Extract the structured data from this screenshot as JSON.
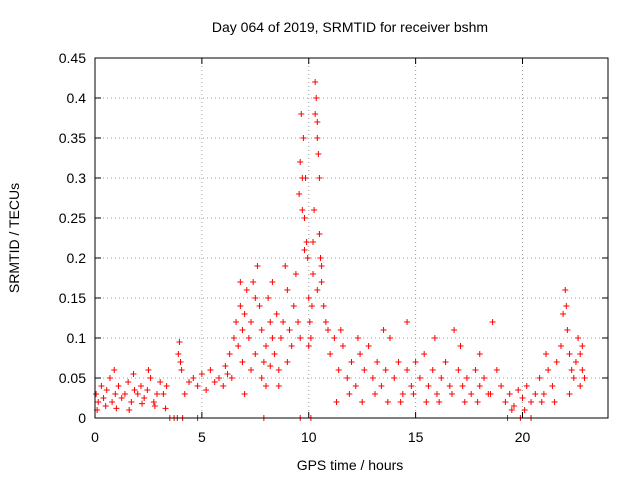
{
  "chart_data": {
    "type": "scatter",
    "title": "Day 064 of 2019, SRMTID for receiver bshm",
    "xlabel": "GPS time / hours",
    "ylabel": "SRMTID / TECUs",
    "xlim": [
      0,
      24
    ],
    "ylim": [
      0,
      0.45
    ],
    "grid": true,
    "marker": "+",
    "color": "#ff0000",
    "x_ticks": [
      0,
      5,
      10,
      15,
      20
    ],
    "x_tick_labels": [
      "0",
      "5",
      "10",
      "15",
      "20"
    ],
    "y_ticks": [
      0,
      0.05,
      0.1,
      0.15,
      0.2,
      0.25,
      0.3,
      0.35,
      0.4,
      0.45
    ],
    "y_tick_labels": [
      "0",
      "0.05",
      "0.1",
      "0.15",
      "0.2",
      "0.25",
      "0.3",
      "0.35",
      "0.4",
      "0.45"
    ],
    "series": [
      {
        "name": "SRMTID",
        "points": [
          [
            0.05,
            0.03
          ],
          [
            0.15,
            0.02
          ],
          [
            0.3,
            0.04
          ],
          [
            0.4,
            0.025
          ],
          [
            0.55,
            0.035
          ],
          [
            0.7,
            0.05
          ],
          [
            0.8,
            0.02
          ],
          [
            0.95,
            0.03
          ],
          [
            1.1,
            0.04
          ],
          [
            1.25,
            0.025
          ],
          [
            1.4,
            0.03
          ],
          [
            1.55,
            0.045
          ],
          [
            1.7,
            0.02
          ],
          [
            1.85,
            0.035
          ],
          [
            2.0,
            0.03
          ],
          [
            2.15,
            0.04
          ],
          [
            2.3,
            0.025
          ],
          [
            2.45,
            0.035
          ],
          [
            2.6,
            0.05
          ],
          [
            2.75,
            0.02
          ],
          [
            2.9,
            0.03
          ],
          [
            3.05,
            0.045
          ],
          [
            3.2,
            0.03
          ],
          [
            3.35,
            0.04
          ],
          [
            0.1,
            0.01
          ],
          [
            0.5,
            0.015
          ],
          [
            1.0,
            0.012
          ],
          [
            1.6,
            0.01
          ],
          [
            2.2,
            0.018
          ],
          [
            2.8,
            0.015
          ],
          [
            3.3,
            0.012
          ],
          [
            0.9,
            0.06
          ],
          [
            1.8,
            0.055
          ],
          [
            2.5,
            0.06
          ],
          [
            3.5,
            0.0
          ],
          [
            3.7,
            0.0
          ],
          [
            3.85,
            0.0
          ],
          [
            4.1,
            0.0
          ],
          [
            4.8,
            0.0
          ],
          [
            7.9,
            0.0
          ],
          [
            9.6,
            0.0
          ],
          [
            10.1,
            0.0
          ],
          [
            19.3,
            0.0
          ],
          [
            19.9,
            0.0
          ],
          [
            20.4,
            0.0
          ],
          [
            3.9,
            0.08
          ],
          [
            3.95,
            0.095
          ],
          [
            4.0,
            0.07
          ],
          [
            4.05,
            0.06
          ],
          [
            4.2,
            0.03
          ],
          [
            4.4,
            0.045
          ],
          [
            4.6,
            0.05
          ],
          [
            4.8,
            0.04
          ],
          [
            5.0,
            0.055
          ],
          [
            5.2,
            0.035
          ],
          [
            5.4,
            0.06
          ],
          [
            5.6,
            0.045
          ],
          [
            5.8,
            0.05
          ],
          [
            6.0,
            0.04
          ],
          [
            6.1,
            0.065
          ],
          [
            6.2,
            0.055
          ],
          [
            6.3,
            0.08
          ],
          [
            6.5,
            0.1
          ],
          [
            6.6,
            0.12
          ],
          [
            6.7,
            0.09
          ],
          [
            6.8,
            0.14
          ],
          [
            6.9,
            0.11
          ],
          [
            7.0,
            0.13
          ],
          [
            7.1,
            0.16
          ],
          [
            7.2,
            0.1
          ],
          [
            7.3,
            0.12
          ],
          [
            7.4,
            0.17
          ],
          [
            7.5,
            0.08
          ],
          [
            7.6,
            0.19
          ],
          [
            7.7,
            0.14
          ],
          [
            7.8,
            0.11
          ],
          [
            7.9,
            0.07
          ],
          [
            8.0,
            0.09
          ],
          [
            8.1,
            0.15
          ],
          [
            8.2,
            0.12
          ],
          [
            8.3,
            0.1
          ],
          [
            8.4,
            0.08
          ],
          [
            8.5,
            0.13
          ],
          [
            8.6,
            0.06
          ],
          [
            8.7,
            0.1
          ],
          [
            8.8,
            0.12
          ],
          [
            8.9,
            0.19
          ],
          [
            9.0,
            0.16
          ],
          [
            9.1,
            0.11
          ],
          [
            9.2,
            0.09
          ],
          [
            9.3,
            0.14
          ],
          [
            9.4,
            0.18
          ],
          [
            9.5,
            0.12
          ],
          [
            9.6,
            0.1
          ],
          [
            6.4,
            0.05
          ],
          [
            6.9,
            0.07
          ],
          [
            7.3,
            0.06
          ],
          [
            7.8,
            0.05
          ],
          [
            8.2,
            0.065
          ],
          [
            8.6,
            0.04
          ],
          [
            9.0,
            0.07
          ],
          [
            7.0,
            0.03
          ],
          [
            8.0,
            0.04
          ],
          [
            7.5,
            0.15
          ],
          [
            8.3,
            0.17
          ],
          [
            6.8,
            0.17
          ],
          [
            9.55,
            0.28
          ],
          [
            9.6,
            0.32
          ],
          [
            9.65,
            0.38
          ],
          [
            9.7,
            0.3
          ],
          [
            9.75,
            0.35
          ],
          [
            9.8,
            0.25
          ],
          [
            9.85,
            0.3
          ],
          [
            9.9,
            0.22
          ],
          [
            9.95,
            0.2
          ],
          [
            10.0,
            0.15
          ],
          [
            10.05,
            0.12
          ],
          [
            10.1,
            0.1
          ],
          [
            10.15,
            0.14
          ],
          [
            10.2,
            0.18
          ],
          [
            10.25,
            0.26
          ],
          [
            10.3,
            0.42
          ],
          [
            10.35,
            0.4
          ],
          [
            10.4,
            0.37
          ],
          [
            10.45,
            0.33
          ],
          [
            10.5,
            0.23
          ],
          [
            10.55,
            0.2
          ],
          [
            10.6,
            0.17
          ],
          [
            10.7,
            0.14
          ],
          [
            10.8,
            0.12
          ],
          [
            10.9,
            0.11
          ],
          [
            9.7,
            0.26
          ],
          [
            9.8,
            0.21
          ],
          [
            10.2,
            0.22
          ],
          [
            10.3,
            0.38
          ],
          [
            10.4,
            0.35
          ],
          [
            10.5,
            0.3
          ],
          [
            10.6,
            0.19
          ],
          [
            10.0,
            0.09
          ],
          [
            10.4,
            0.16
          ],
          [
            11.0,
            0.08
          ],
          [
            11.2,
            0.1
          ],
          [
            11.4,
            0.06
          ],
          [
            11.6,
            0.09
          ],
          [
            11.8,
            0.05
          ],
          [
            12.0,
            0.07
          ],
          [
            12.2,
            0.04
          ],
          [
            12.4,
            0.08
          ],
          [
            12.6,
            0.06
          ],
          [
            12.8,
            0.09
          ],
          [
            13.0,
            0.05
          ],
          [
            13.2,
            0.07
          ],
          [
            13.4,
            0.04
          ],
          [
            13.6,
            0.06
          ],
          [
            13.8,
            0.1
          ],
          [
            14.0,
            0.05
          ],
          [
            14.2,
            0.07
          ],
          [
            14.4,
            0.03
          ],
          [
            14.6,
            0.06
          ],
          [
            14.8,
            0.04
          ],
          [
            15.0,
            0.07
          ],
          [
            15.2,
            0.05
          ],
          [
            15.4,
            0.08
          ],
          [
            15.6,
            0.04
          ],
          [
            15.8,
            0.06
          ],
          [
            16.0,
            0.03
          ],
          [
            16.2,
            0.05
          ],
          [
            16.4,
            0.07
          ],
          [
            16.6,
            0.04
          ],
          [
            16.8,
            0.11
          ],
          [
            17.0,
            0.06
          ],
          [
            17.2,
            0.04
          ],
          [
            17.4,
            0.05
          ],
          [
            17.6,
            0.03
          ],
          [
            17.8,
            0.06
          ],
          [
            18.0,
            0.04
          ],
          [
            18.2,
            0.05
          ],
          [
            18.4,
            0.03
          ],
          [
            18.6,
            0.12
          ],
          [
            18.8,
            0.06
          ],
          [
            19.0,
            0.04
          ],
          [
            11.3,
            0.02
          ],
          [
            11.9,
            0.03
          ],
          [
            12.5,
            0.02
          ],
          [
            13.1,
            0.03
          ],
          [
            13.7,
            0.02
          ],
          [
            14.3,
            0.02
          ],
          [
            14.9,
            0.03
          ],
          [
            15.5,
            0.02
          ],
          [
            16.1,
            0.02
          ],
          [
            16.7,
            0.03
          ],
          [
            17.3,
            0.02
          ],
          [
            17.9,
            0.02
          ],
          [
            18.5,
            0.03
          ],
          [
            11.5,
            0.11
          ],
          [
            12.3,
            0.1
          ],
          [
            13.5,
            0.11
          ],
          [
            14.6,
            0.12
          ],
          [
            15.9,
            0.1
          ],
          [
            17.1,
            0.09
          ],
          [
            18.0,
            0.08
          ],
          [
            19.2,
            0.02
          ],
          [
            19.4,
            0.03
          ],
          [
            19.6,
            0.015
          ],
          [
            19.8,
            0.035
          ],
          [
            20.0,
            0.025
          ],
          [
            20.2,
            0.04
          ],
          [
            20.4,
            0.02
          ],
          [
            20.6,
            0.03
          ],
          [
            20.8,
            0.05
          ],
          [
            21.0,
            0.03
          ],
          [
            21.2,
            0.06
          ],
          [
            21.4,
            0.04
          ],
          [
            21.6,
            0.07
          ],
          [
            21.8,
            0.09
          ],
          [
            21.9,
            0.13
          ],
          [
            22.0,
            0.16
          ],
          [
            22.05,
            0.14
          ],
          [
            22.1,
            0.11
          ],
          [
            22.2,
            0.08
          ],
          [
            22.3,
            0.06
          ],
          [
            22.4,
            0.05
          ],
          [
            22.5,
            0.07
          ],
          [
            22.6,
            0.1
          ],
          [
            22.7,
            0.08
          ],
          [
            22.8,
            0.06
          ],
          [
            22.9,
            0.05
          ],
          [
            19.5,
            0.01
          ],
          [
            20.1,
            0.01
          ],
          [
            20.9,
            0.02
          ],
          [
            21.5,
            0.02
          ],
          [
            22.2,
            0.03
          ],
          [
            22.7,
            0.04
          ],
          [
            21.1,
            0.08
          ],
          [
            22.8,
            0.09
          ]
        ]
      }
    ]
  }
}
